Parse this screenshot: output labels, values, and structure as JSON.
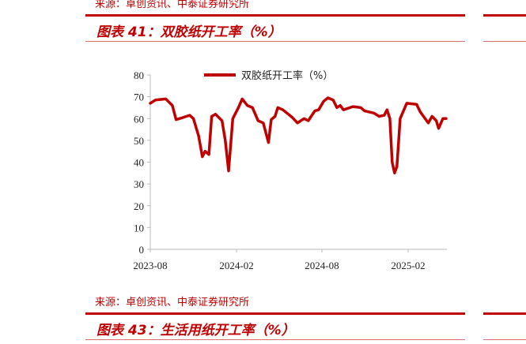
{
  "top": {
    "source": "来源：卓创资讯、中泰证券研究所",
    "title": "图表 41：双胶纸开工率（%）"
  },
  "bottom": {
    "source": "来源：卓创资讯、中泰证券研究所",
    "title": "图表 43：生活用纸开工率（%）"
  },
  "chart_data": {
    "type": "line",
    "xlabel": "",
    "ylabel": "",
    "ylim": [
      0,
      80
    ],
    "yticks": [
      0,
      10,
      20,
      30,
      40,
      50,
      60,
      70,
      80
    ],
    "xticks": [
      "2023-08",
      "2024-02",
      "2024-08",
      "2025-02"
    ],
    "grid": false,
    "legend_position": "top",
    "color": "#c00000",
    "series": [
      {
        "name": "双胶纸开工率（%）",
        "points": [
          [
            "2023-08-01",
            67
          ],
          [
            "2023-08-12",
            68.5
          ],
          [
            "2023-09-03",
            69
          ],
          [
            "2023-09-17",
            66
          ],
          [
            "2023-09-25",
            59.5
          ],
          [
            "2023-10-10",
            60.5
          ],
          [
            "2023-10-24",
            61.5
          ],
          [
            "2023-11-01",
            60
          ],
          [
            "2023-11-12",
            52
          ],
          [
            "2023-11-20",
            42.5
          ],
          [
            "2023-11-26",
            45
          ],
          [
            "2023-12-04",
            43.5
          ],
          [
            "2023-12-10",
            61
          ],
          [
            "2023-12-18",
            62
          ],
          [
            "2024-01-01",
            59
          ],
          [
            "2024-01-08",
            50
          ],
          [
            "2024-01-15",
            36
          ],
          [
            "2024-01-24",
            60
          ],
          [
            "2024-02-05",
            65
          ],
          [
            "2024-02-13",
            69
          ],
          [
            "2024-02-24",
            66
          ],
          [
            "2024-03-06",
            65
          ],
          [
            "2024-03-18",
            59
          ],
          [
            "2024-03-29",
            58
          ],
          [
            "2024-04-09",
            49
          ],
          [
            "2024-04-15",
            59.5
          ],
          [
            "2024-04-23",
            61
          ],
          [
            "2024-04-29",
            65
          ],
          [
            "2024-05-10",
            64
          ],
          [
            "2024-05-30",
            60.5
          ],
          [
            "2024-06-10",
            58
          ],
          [
            "2024-06-24",
            60
          ],
          [
            "2024-07-03",
            59
          ],
          [
            "2024-07-17",
            63.5
          ],
          [
            "2024-07-25",
            64
          ],
          [
            "2024-08-05",
            68
          ],
          [
            "2024-08-14",
            69.5
          ],
          [
            "2024-08-25",
            68.5
          ],
          [
            "2024-09-02",
            65
          ],
          [
            "2024-09-09",
            66
          ],
          [
            "2024-09-16",
            64
          ],
          [
            "2024-10-06",
            65.5
          ],
          [
            "2024-10-23",
            65
          ],
          [
            "2024-10-31",
            63.5
          ],
          [
            "2024-11-20",
            62.5
          ],
          [
            "2024-12-01",
            61
          ],
          [
            "2024-12-12",
            61.5
          ],
          [
            "2024-12-18",
            64
          ],
          [
            "2024-12-24",
            60
          ],
          [
            "2024-12-29",
            40
          ],
          [
            "2025-01-03",
            35
          ],
          [
            "2025-01-08",
            38
          ],
          [
            "2025-01-15",
            60
          ],
          [
            "2025-01-29",
            67
          ],
          [
            "2025-02-19",
            66.5
          ],
          [
            "2025-02-27",
            63
          ],
          [
            "2025-03-16",
            58
          ],
          [
            "2025-03-24",
            61
          ],
          [
            "2025-04-02",
            59
          ],
          [
            "2025-04-07",
            55.5
          ],
          [
            "2025-04-16",
            60
          ],
          [
            "2025-04-23",
            60
          ]
        ]
      }
    ]
  }
}
